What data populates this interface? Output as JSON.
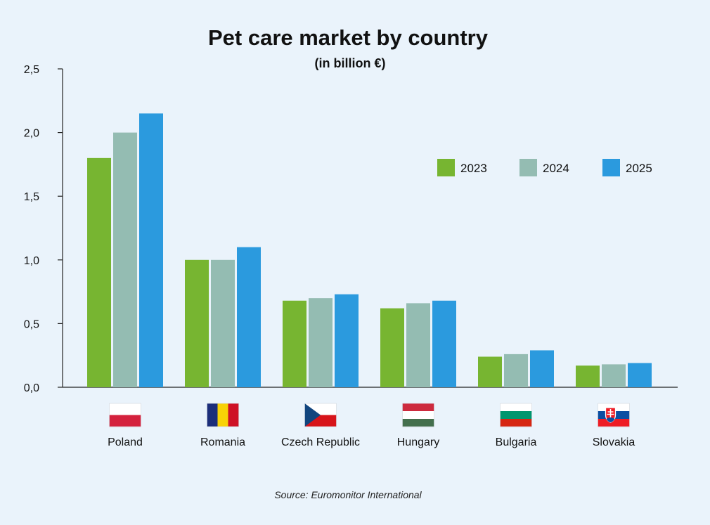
{
  "chart_data": {
    "type": "bar",
    "title": "Pet care market by country",
    "subtitle": "(in billion €)",
    "xlabel": "",
    "ylabel": "",
    "ylim": [
      0,
      2.5
    ],
    "yticks": [
      0,
      0.5,
      1.0,
      1.5,
      2.0,
      2.5
    ],
    "ytick_labels": [
      "0,0",
      "0,5",
      "1,0",
      "1,5",
      "2,0",
      "2,5"
    ],
    "grid": false,
    "legend_position": "top-right",
    "categories": [
      "Poland",
      "Romania",
      "Czech Republic",
      "Hungary",
      "Bulgaria",
      "Slovakia"
    ],
    "series": [
      {
        "name": "2023",
        "color": "#77b531",
        "values": [
          1.8,
          1.0,
          0.68,
          0.62,
          0.24,
          0.17
        ]
      },
      {
        "name": "2024",
        "color": "#94bcb2",
        "values": [
          2.0,
          1.0,
          0.7,
          0.66,
          0.26,
          0.18
        ]
      },
      {
        "name": "2025",
        "color": "#2b9ade",
        "values": [
          2.15,
          1.1,
          0.73,
          0.68,
          0.29,
          0.19
        ]
      }
    ]
  },
  "flags": [
    {
      "country": "Poland",
      "type": "horizontal",
      "colors": [
        "#ffffff",
        "#d4213d"
      ]
    },
    {
      "country": "Romania",
      "type": "vertical",
      "colors": [
        "#1c2e7a",
        "#f8d206",
        "#ce1126"
      ]
    },
    {
      "country": "Czech Republic",
      "type": "czech",
      "colors": [
        "#ffffff",
        "#d7141a",
        "#11457e"
      ]
    },
    {
      "country": "Hungary",
      "type": "horizontal",
      "colors": [
        "#cd2a3e",
        "#ffffff",
        "#436f4d"
      ]
    },
    {
      "country": "Bulgaria",
      "type": "horizontal",
      "colors": [
        "#ffffff",
        "#00966e",
        "#d62612"
      ]
    },
    {
      "country": "Slovakia",
      "type": "slovakia",
      "colors": [
        "#ffffff",
        "#0b4ea2",
        "#ee1c25"
      ]
    }
  ],
  "source": "Source: Euromonitor International"
}
